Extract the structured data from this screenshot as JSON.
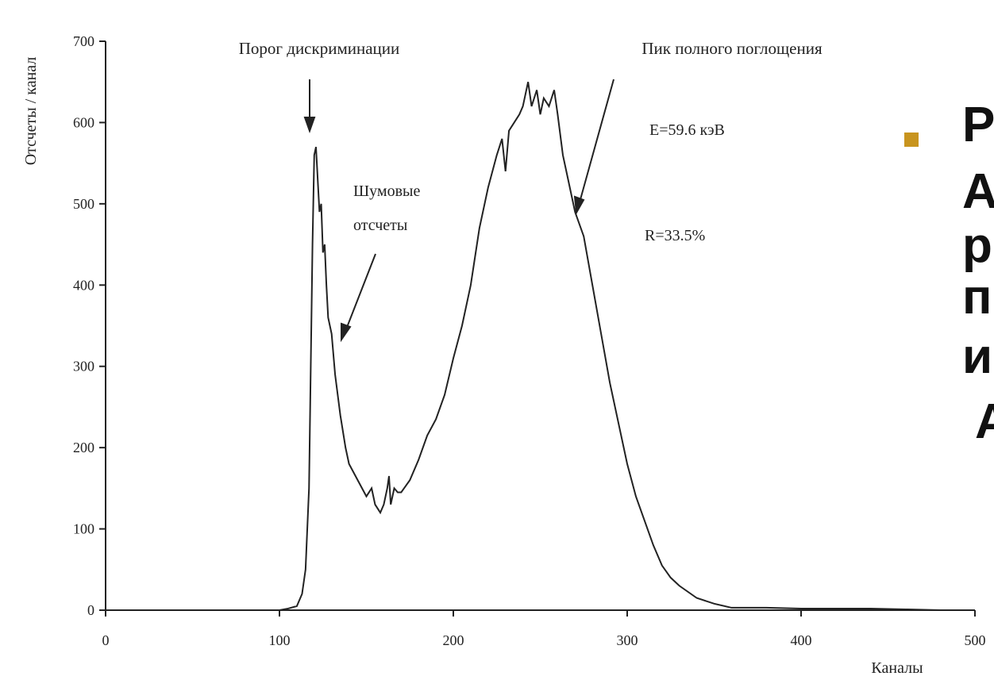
{
  "chart_data": {
    "type": "line",
    "ylabel": "Отсчеты / канал",
    "xlabel": "Каналы",
    "xlim": [
      0,
      500
    ],
    "xticks": [
      0,
      100,
      200,
      300,
      400,
      500
    ],
    "ylim": [
      0,
      700
    ],
    "yticks": [
      0,
      100,
      200,
      300,
      400,
      500,
      600,
      700
    ],
    "annotations": [
      "Порог дискриминации",
      "Пик полного поглощения",
      "E=59.6 кэВ",
      "Шумовые",
      "отсчеты",
      "R=33.5%"
    ],
    "series": [
      {
        "color": "#222222",
        "x": [
          100,
          105,
          110,
          113,
          115,
          117,
          118,
          119,
          120,
          121,
          122,
          123,
          124,
          125,
          126,
          127,
          128,
          130,
          132,
          135,
          138,
          140,
          145,
          150,
          153,
          155,
          158,
          160,
          162,
          163,
          164,
          166,
          168,
          170,
          175,
          180,
          185,
          190,
          195,
          200,
          205,
          210,
          215,
          220,
          225,
          228,
          230,
          232,
          235,
          238,
          240,
          243,
          245,
          248,
          250,
          252,
          255,
          258,
          260,
          263,
          266,
          268,
          270,
          275,
          280,
          285,
          290,
          295,
          300,
          305,
          310,
          315,
          320,
          325,
          330,
          340,
          350,
          360,
          370,
          380,
          400,
          420,
          440,
          460,
          480
        ],
        "values": [
          0,
          2,
          5,
          20,
          50,
          150,
          300,
          450,
          560,
          570,
          530,
          490,
          500,
          440,
          450,
          400,
          360,
          340,
          290,
          240,
          200,
          180,
          160,
          140,
          150,
          130,
          120,
          130,
          150,
          165,
          130,
          150,
          145,
          145,
          160,
          185,
          215,
          235,
          265,
          310,
          350,
          400,
          470,
          520,
          560,
          580,
          540,
          590,
          600,
          610,
          620,
          650,
          620,
          640,
          610,
          630,
          620,
          640,
          610,
          560,
          530,
          510,
          490,
          460,
          400,
          340,
          280,
          230,
          180,
          140,
          110,
          80,
          55,
          40,
          30,
          15,
          8,
          3,
          3,
          3,
          2,
          2,
          2,
          1,
          0
        ]
      }
    ]
  },
  "side_text": [
    "Р",
    "А",
    "р",
    "п",
    "и",
    "А"
  ]
}
